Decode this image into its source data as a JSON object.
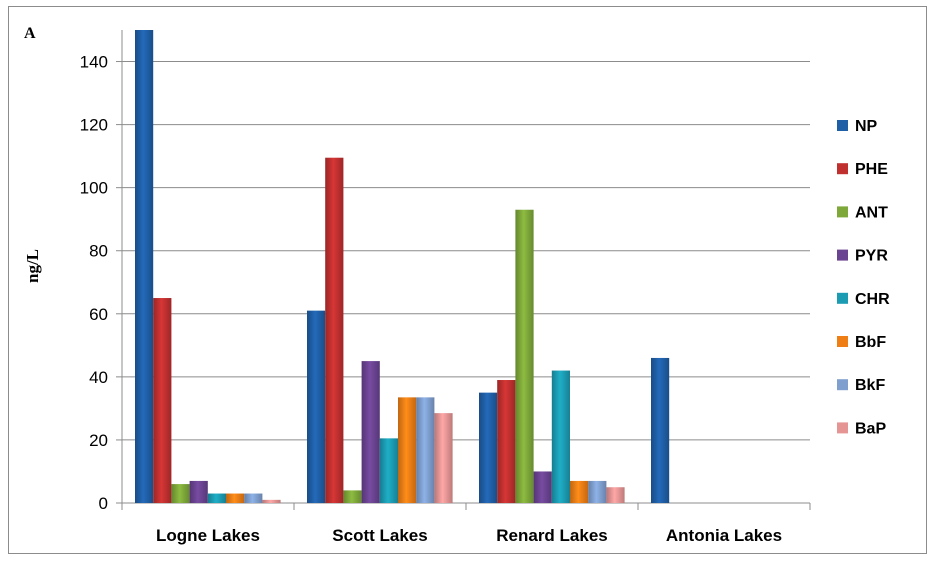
{
  "chart_data": {
    "type": "bar",
    "panel_label": "A",
    "ylabel": "ng/L",
    "xlabel": "",
    "ylim": [
      0,
      150
    ],
    "yticks": [
      0,
      20,
      40,
      60,
      80,
      100,
      120,
      140
    ],
    "grid": true,
    "legend_position": "right",
    "categories": [
      "Logne Lakes",
      "Scott Lakes",
      "Renard Lakes",
      "Antonia Lakes"
    ],
    "series": [
      {
        "name": "NP",
        "color": "#1f5fa6",
        "values": [
          150,
          61,
          35,
          46
        ]
      },
      {
        "name": "PHE",
        "color": "#c0302f",
        "values": [
          65,
          109.5,
          39,
          0
        ]
      },
      {
        "name": "ANT",
        "color": "#7ea83a",
        "values": [
          6,
          4,
          93,
          0
        ]
      },
      {
        "name": "PYR",
        "color": "#6a4391",
        "values": [
          7,
          45,
          10,
          0
        ]
      },
      {
        "name": "CHR",
        "color": "#1c9cb3",
        "values": [
          3,
          20.5,
          42,
          0
        ]
      },
      {
        "name": "BbF",
        "color": "#f07e16",
        "values": [
          3,
          33.5,
          7,
          0
        ]
      },
      {
        "name": "BkF",
        "color": "#7f9fcf",
        "values": [
          3,
          33.5,
          7,
          0
        ]
      },
      {
        "name": "BaP",
        "color": "#e69595",
        "values": [
          1,
          28.5,
          5,
          0
        ]
      }
    ]
  }
}
